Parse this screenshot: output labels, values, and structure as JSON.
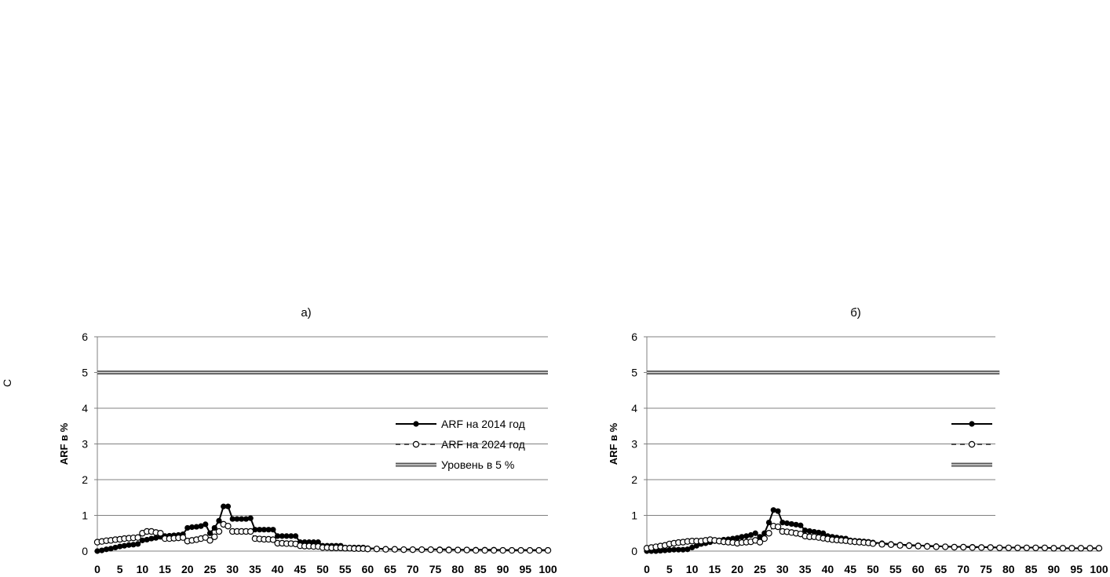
{
  "colors": {
    "grid": "#808080",
    "series": "#000000",
    "threshold": "#555555",
    "background": "#ffffff"
  },
  "chart_data": [
    {
      "type": "line",
      "title": "а)",
      "xlabel": "",
      "ylabel": "ARF в %",
      "xlim": [
        0,
        100
      ],
      "ylim": [
        0,
        6
      ],
      "xticks": [
        0,
        5,
        10,
        15,
        20,
        25,
        30,
        35,
        40,
        45,
        50,
        55,
        60,
        65,
        70,
        75,
        80,
        85,
        90,
        95,
        100
      ],
      "yticks": [
        0,
        1,
        2,
        3,
        4,
        5,
        6
      ],
      "grid": "horizontal",
      "legend_position": "right-middle",
      "series": [
        {
          "name": "ARF на 2014 год",
          "style": "solid-filled-circle",
          "x": [
            0,
            1,
            2,
            3,
            4,
            5,
            6,
            7,
            8,
            9,
            10,
            11,
            12,
            13,
            14,
            15,
            16,
            17,
            18,
            19,
            20,
            21,
            22,
            23,
            24,
            25,
            26,
            27,
            28,
            29,
            30,
            31,
            32,
            33,
            34,
            35,
            36,
            37,
            38,
            39,
            40,
            41,
            42,
            43,
            44,
            45,
            46,
            47,
            48,
            49,
            50,
            51,
            52,
            53,
            54,
            55,
            56,
            57,
            58,
            59,
            60,
            62,
            64,
            66,
            68,
            70,
            72,
            74,
            76,
            78,
            80,
            82,
            84,
            86,
            88,
            90,
            92,
            94,
            96,
            98,
            100
          ],
          "y": [
            0,
            0.02,
            0.05,
            0.07,
            0.1,
            0.13,
            0.15,
            0.17,
            0.18,
            0.2,
            0.3,
            0.32,
            0.35,
            0.37,
            0.4,
            0.42,
            0.43,
            0.44,
            0.45,
            0.47,
            0.65,
            0.67,
            0.68,
            0.7,
            0.75,
            0.5,
            0.65,
            0.85,
            1.25,
            1.25,
            0.9,
            0.9,
            0.9,
            0.9,
            0.92,
            0.6,
            0.6,
            0.6,
            0.6,
            0.6,
            0.42,
            0.42,
            0.42,
            0.42,
            0.42,
            0.25,
            0.25,
            0.25,
            0.25,
            0.25,
            0.15,
            0.15,
            0.15,
            0.15,
            0.15,
            0.1,
            0.1,
            0.1,
            0.1,
            0.1,
            0.08,
            0.07,
            0.06,
            0.05,
            0.05,
            0.05,
            0.05,
            0.05,
            0.05,
            0.05,
            0.04,
            0.04,
            0.04,
            0.04,
            0.04,
            0.03,
            0.03,
            0.03,
            0.03,
            0.03,
            0.03
          ]
        },
        {
          "name": "ARF на 2024 год",
          "style": "dashed-open-circle",
          "x": [
            0,
            1,
            2,
            3,
            4,
            5,
            6,
            7,
            8,
            9,
            10,
            11,
            12,
            13,
            14,
            15,
            16,
            17,
            18,
            19,
            20,
            21,
            22,
            23,
            24,
            25,
            26,
            27,
            28,
            29,
            30,
            31,
            32,
            33,
            34,
            35,
            36,
            37,
            38,
            39,
            40,
            41,
            42,
            43,
            44,
            45,
            46,
            47,
            48,
            49,
            50,
            51,
            52,
            53,
            54,
            55,
            56,
            57,
            58,
            59,
            60,
            62,
            64,
            66,
            68,
            70,
            72,
            74,
            76,
            78,
            80,
            82,
            84,
            86,
            88,
            90,
            92,
            94,
            96,
            98,
            100
          ],
          "y": [
            0.25,
            0.27,
            0.29,
            0.3,
            0.32,
            0.33,
            0.35,
            0.36,
            0.37,
            0.38,
            0.5,
            0.55,
            0.55,
            0.52,
            0.5,
            0.35,
            0.35,
            0.36,
            0.37,
            0.38,
            0.28,
            0.3,
            0.32,
            0.35,
            0.38,
            0.3,
            0.4,
            0.55,
            0.75,
            0.7,
            0.55,
            0.55,
            0.55,
            0.55,
            0.55,
            0.35,
            0.34,
            0.33,
            0.33,
            0.32,
            0.22,
            0.22,
            0.21,
            0.21,
            0.2,
            0.15,
            0.14,
            0.14,
            0.13,
            0.13,
            0.1,
            0.1,
            0.09,
            0.09,
            0.09,
            0.08,
            0.08,
            0.07,
            0.07,
            0.07,
            0.06,
            0.06,
            0.05,
            0.05,
            0.04,
            0.04,
            0.04,
            0.04,
            0.03,
            0.03,
            0.03,
            0.03,
            0.02,
            0.02,
            0.02,
            0.02,
            0.02,
            0.02,
            0.02,
            0.02,
            0.02
          ]
        },
        {
          "name": "Уровень в 5 %",
          "style": "double-line",
          "x": [
            0,
            100
          ],
          "y": [
            5,
            5
          ]
        }
      ]
    },
    {
      "type": "line",
      "title": "б)",
      "xlabel": "",
      "ylabel": "ARF в %",
      "xlim": [
        0,
        100
      ],
      "ylim": [
        0,
        6
      ],
      "xticks": [
        0,
        5,
        10,
        15,
        20,
        25,
        30,
        35,
        40,
        45,
        50,
        55,
        60,
        65,
        70,
        75,
        80,
        85,
        90,
        95,
        100
      ],
      "yticks": [
        0,
        1,
        2,
        3,
        4,
        5,
        6
      ],
      "grid": "horizontal",
      "legend_position": "right-middle",
      "series": [
        {
          "name": "",
          "style": "solid-filled-circle",
          "x": [
            0,
            1,
            2,
            3,
            4,
            5,
            6,
            7,
            8,
            9,
            10,
            11,
            12,
            13,
            14,
            15,
            16,
            17,
            18,
            19,
            20,
            21,
            22,
            23,
            24,
            25,
            26,
            27,
            28,
            29,
            30,
            31,
            32,
            33,
            34,
            35,
            36,
            37,
            38,
            39,
            40,
            41,
            42,
            43,
            44,
            45,
            46,
            47,
            48,
            49,
            50,
            52,
            54,
            56,
            58,
            60,
            62,
            64,
            66,
            68,
            70,
            72,
            74,
            76,
            78,
            80,
            82,
            84,
            86,
            88,
            90,
            92,
            94,
            96,
            98,
            100
          ],
          "y": [
            0,
            0,
            0,
            0.01,
            0.02,
            0.03,
            0.04,
            0.04,
            0.04,
            0.05,
            0.1,
            0.15,
            0.2,
            0.22,
            0.25,
            0.28,
            0.3,
            0.32,
            0.33,
            0.35,
            0.37,
            0.4,
            0.42,
            0.45,
            0.5,
            0.4,
            0.5,
            0.8,
            1.15,
            1.12,
            0.8,
            0.78,
            0.76,
            0.74,
            0.72,
            0.58,
            0.56,
            0.54,
            0.52,
            0.5,
            0.42,
            0.4,
            0.38,
            0.36,
            0.35,
            0.3,
            0.29,
            0.28,
            0.27,
            0.26,
            0.24,
            0.22,
            0.2,
            0.18,
            0.17,
            0.16,
            0.15,
            0.14,
            0.13,
            0.12,
            0.12,
            0.12,
            0.11,
            0.11,
            0.1,
            0.1,
            0.1,
            0.1,
            0.1,
            0.1,
            0.08,
            0.08,
            0.08,
            0.08,
            0.08,
            0.08
          ]
        },
        {
          "name": "",
          "style": "dashed-open-circle",
          "x": [
            0,
            1,
            2,
            3,
            4,
            5,
            6,
            7,
            8,
            9,
            10,
            11,
            12,
            13,
            14,
            15,
            16,
            17,
            18,
            19,
            20,
            21,
            22,
            23,
            24,
            25,
            26,
            27,
            28,
            29,
            30,
            31,
            32,
            33,
            34,
            35,
            36,
            37,
            38,
            39,
            40,
            41,
            42,
            43,
            44,
            45,
            46,
            47,
            48,
            49,
            50,
            52,
            54,
            56,
            58,
            60,
            62,
            64,
            66,
            68,
            70,
            72,
            74,
            76,
            78,
            80,
            82,
            84,
            86,
            88,
            90,
            92,
            94,
            96,
            98,
            100
          ],
          "y": [
            0.08,
            0.1,
            0.12,
            0.14,
            0.16,
            0.2,
            0.22,
            0.24,
            0.25,
            0.27,
            0.28,
            0.28,
            0.28,
            0.3,
            0.32,
            0.3,
            0.28,
            0.26,
            0.25,
            0.24,
            0.22,
            0.24,
            0.25,
            0.26,
            0.3,
            0.25,
            0.35,
            0.5,
            0.7,
            0.68,
            0.55,
            0.54,
            0.52,
            0.5,
            0.48,
            0.42,
            0.4,
            0.4,
            0.38,
            0.36,
            0.34,
            0.32,
            0.31,
            0.3,
            0.29,
            0.27,
            0.26,
            0.25,
            0.24,
            0.23,
            0.21,
            0.19,
            0.18,
            0.16,
            0.15,
            0.14,
            0.13,
            0.12,
            0.12,
            0.11,
            0.11,
            0.1,
            0.1,
            0.1,
            0.09,
            0.09,
            0.09,
            0.09,
            0.09,
            0.09,
            0.08,
            0.08,
            0.08,
            0.08,
            0.08,
            0.08
          ]
        },
        {
          "name": "",
          "style": "double-line",
          "x": [
            0,
            78
          ],
          "y": [
            5,
            5
          ]
        }
      ]
    }
  ]
}
